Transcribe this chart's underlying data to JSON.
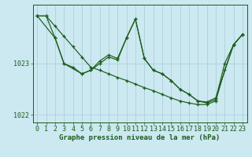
{
  "title": "Graphe pression niveau de la mer (hPa)",
  "bg_color": "#cce8f0",
  "grid_color": "#a8ccd8",
  "line_color": "#1a5c1a",
  "ylim": [
    1021.85,
    1024.15
  ],
  "xlim": [
    -0.5,
    23.5
  ],
  "yticks": [
    1022,
    1023
  ],
  "xticks": [
    0,
    1,
    2,
    3,
    4,
    5,
    6,
    7,
    8,
    9,
    10,
    11,
    12,
    13,
    14,
    15,
    16,
    17,
    18,
    19,
    20,
    21,
    22,
    23
  ],
  "series_A": [
    1023.93,
    1023.93,
    1023.73,
    1023.53,
    1023.33,
    1023.13,
    1022.93,
    1022.87,
    1022.8,
    1022.73,
    1022.67,
    1022.6,
    1022.53,
    1022.47,
    1022.4,
    1022.33,
    1022.27,
    1022.23,
    1022.2,
    1022.2,
    1022.27,
    1022.87,
    1023.37,
    1023.57
  ],
  "series_B_x": [
    0,
    2,
    3,
    5,
    6,
    7,
    8,
    9,
    10,
    11,
    12,
    13,
    14,
    15,
    16,
    17,
    18,
    19,
    20,
    22,
    23
  ],
  "series_B_y": [
    1023.93,
    1023.5,
    1023.0,
    1022.8,
    1022.87,
    1023.0,
    1023.13,
    1023.07,
    1023.5,
    1023.87,
    1023.1,
    1022.87,
    1022.8,
    1022.67,
    1022.5,
    1022.4,
    1022.27,
    1022.25,
    1022.33,
    1023.37,
    1023.57
  ],
  "series_C": [
    1023.93,
    1023.93,
    1023.5,
    1023.0,
    1022.93,
    1022.8,
    1022.87,
    1023.05,
    1023.17,
    1023.1,
    1023.5,
    1023.87,
    1023.1,
    1022.87,
    1022.8,
    1022.67,
    1022.5,
    1022.4,
    1022.27,
    1022.23,
    1022.3,
    1023.0,
    1023.37,
    1023.57
  ],
  "tick_fontsize": 6,
  "xlabel_fontsize": 6.5
}
